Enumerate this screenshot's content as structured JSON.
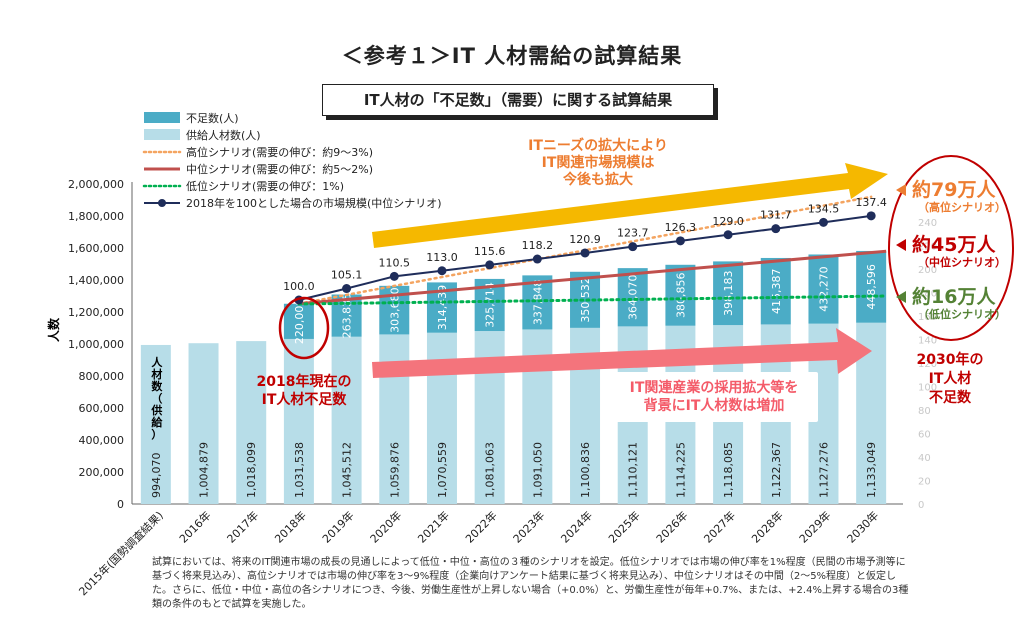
{
  "title": "＜参考１＞IT 人材需給の試算結果",
  "subtitle": "IT人材の「不足数」（需要）に関する試算結果",
  "chart_data": {
    "type": "bar",
    "ylabel": "人数",
    "ylim": [
      0,
      2000000
    ],
    "yticks": [
      "2,000,000",
      "1,800,000",
      "1,600,000",
      "1,400,000",
      "1,200,000",
      "1,000,000",
      "800,000",
      "600,000",
      "400,000",
      "200,000",
      "0"
    ],
    "right_ticks": [
      "240",
      "220",
      "200",
      "180",
      "160",
      "140",
      "120",
      "100",
      "80",
      "60",
      "40",
      "20",
      "0"
    ],
    "categories": [
      "2015年(国勢調査結果)",
      "2016年",
      "2017年",
      "2018年",
      "2019年",
      "2020年",
      "2021年",
      "2022年",
      "2023年",
      "2024年",
      "2025年",
      "2026年",
      "2027年",
      "2028年",
      "2029年",
      "2030年"
    ],
    "supply": [
      994070,
      1004879,
      1018099,
      1031538,
      1045512,
      1059876,
      1070559,
      1081063,
      1091050,
      1100836,
      1110121,
      1114225,
      1118085,
      1122367,
      1127276,
      1133049
    ],
    "supply_labels": [
      "994,070",
      "1,004,879",
      "1,018,099",
      "1,031,538",
      "1,045,512",
      "1,059,876",
      "1,070,559",
      "1,081,063",
      "1,091,050",
      "1,100,836",
      "1,110,121",
      "1,114,225",
      "1,118,085",
      "1,122,367",
      "1,127,276",
      "1,133,049"
    ],
    "shortage": [
      null,
      null,
      null,
      220000,
      263835,
      303680,
      314439,
      325714,
      337848,
      350532,
      364070,
      380856,
      398183,
      415387,
      432270,
      448596
    ],
    "shortage_labels": [
      null,
      null,
      null,
      "220,000",
      "263,835",
      "303,680",
      "314,439",
      "325,714",
      "337,848",
      "350,532",
      "364,070",
      "380,856",
      "398,183",
      "415,387",
      "432,270",
      "448,596"
    ],
    "market_index": [
      null,
      null,
      null,
      100.0,
      105.1,
      110.5,
      113.0,
      115.6,
      118.2,
      120.9,
      123.7,
      126.3,
      129.0,
      131.7,
      134.5,
      137.4
    ],
    "market_index_labels": [
      null,
      null,
      null,
      "100.0",
      "105.1",
      "110.5",
      "113.0",
      "115.6",
      "118.2",
      "120.9",
      "123.7",
      "126.3",
      "129.0",
      "131.7",
      "134.5",
      "137.4"
    ],
    "legend": [
      {
        "label": "不足数(人)",
        "color": "#4bacc6",
        "kind": "bar"
      },
      {
        "label": "供給人材数(人)",
        "color": "#b7dde8",
        "kind": "bar"
      },
      {
        "label": "高位シナリオ(需要の伸び：約9～3%)",
        "color": "#f4a460",
        "kind": "dotted"
      },
      {
        "label": "中位シナリオ(需要の伸び：約5～2%)",
        "color": "#c0504d",
        "kind": "line"
      },
      {
        "label": "低位シナリオ(需要の伸び：1%)",
        "color": "#00b050",
        "kind": "dotted"
      },
      {
        "label": "2018年を100とした場合の市場規模(中位シナリオ)",
        "color": "#1f2d5a",
        "kind": "marker-line"
      }
    ],
    "supply_axis_label": [
      "人",
      "材",
      "数",
      "（",
      "供",
      "給",
      "）"
    ],
    "scenarios": {
      "high": {
        "end": 1920000
      },
      "mid": {
        "end": 1580000
      },
      "low": {
        "start": 1250000,
        "end": 1300000
      }
    }
  },
  "annotations": {
    "top_arrow": [
      "ITニーズの拡大により",
      "IT関連市場規模は",
      "今後も拡大"
    ],
    "bottom_arrow": [
      "IT関連産業の採用拡大等を",
      "背景にIT人材数は増加"
    ],
    "shortage_2018": [
      "2018年現在の",
      "IT人材不足数"
    ],
    "high": {
      "big": "約79万人",
      "small": "（高位シナリオ）"
    },
    "mid": {
      "big": "約45万人",
      "small": "（中位シナリオ）"
    },
    "low": {
      "big": "約16万人",
      "small": "（低位シナリオ）"
    },
    "shortage_2030": [
      "2030年の",
      "IT人材",
      "不足数"
    ]
  },
  "footnote": "試算においては、将来のIT関連市場の成長の見通しによって低位・中位・高位の３種のシナリオを設定。低位シナリオでは市場の伸び率を1%程度（民間の市場予測等に基づく将来見込み）、高位シナリオでは市場の伸び率を3～9%程度（企業向けアンケート結果に基づく将来見込み）、中位シナリオはその中間（2～5%程度）と仮定した。さらに、低位・中位・高位の各シナリオにつき、今後、労働生産性が上昇しない場合（+0.0%）と、労働生産性が毎年+0.7%、または、+2.4%上昇する場合の3種類の条件のもとで試算を実施した。",
  "colors": {
    "shortage": "#4bacc6",
    "supply": "#b7dde8",
    "high": "#f4a460",
    "mid": "#c0504d",
    "low": "#00b050",
    "market": "#1f2d5a",
    "orange": "#ed7d31",
    "red": "#c00000",
    "green": "#548235",
    "arrow_top": "#f5b800",
    "arrow_bottom": "#f4747c"
  }
}
